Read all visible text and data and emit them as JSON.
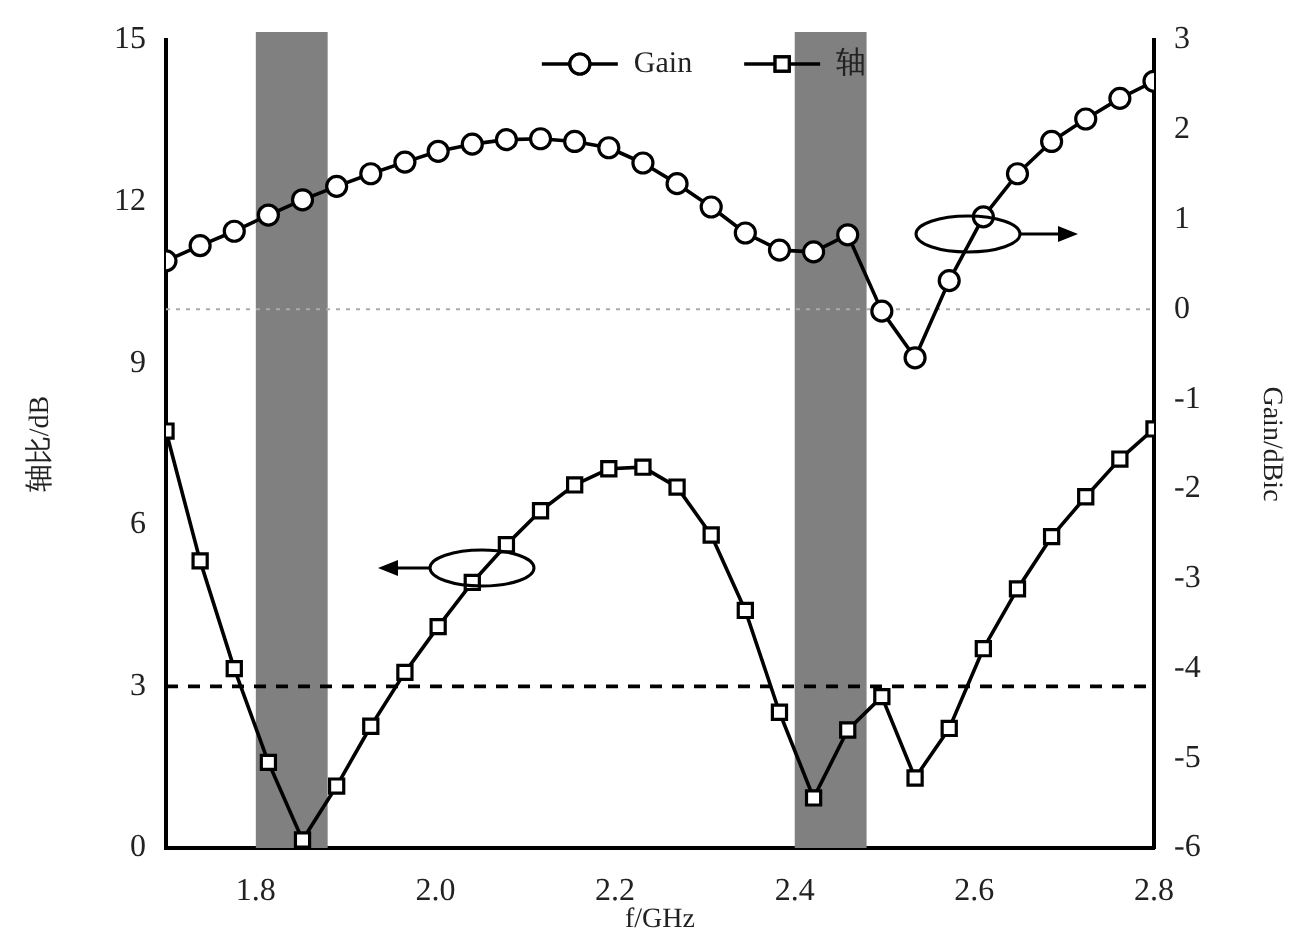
{
  "chart_data": {
    "type": "line",
    "xlabel": "f/GHz",
    "ylabel": "轴比/dB",
    "y2label": "Gain/dBic",
    "x": [
      1.7,
      1.738,
      1.776,
      1.814,
      1.852,
      1.89,
      1.928,
      1.966,
      2.003,
      2.041,
      2.079,
      2.117,
      2.155,
      2.193,
      2.231,
      2.269,
      2.307,
      2.345,
      2.383,
      2.421,
      2.459,
      2.497,
      2.534,
      2.572,
      2.61,
      2.648,
      2.686,
      2.724,
      2.762,
      2.8
    ],
    "series": [
      {
        "name": "Gain",
        "color": "#000000",
        "axis": "y2",
        "marker": "circle",
        "values": [
          0.54,
          0.71,
          0.87,
          1.05,
          1.22,
          1.37,
          1.51,
          1.64,
          1.76,
          1.84,
          1.89,
          1.9,
          1.87,
          1.8,
          1.63,
          1.4,
          1.14,
          0.85,
          0.66,
          0.64,
          0.83,
          -0.02,
          -0.54,
          0.32,
          1.03,
          1.51,
          1.87,
          2.12,
          2.35,
          2.54
        ]
      },
      {
        "name": "轴",
        "color": "#000000",
        "axis": "y",
        "marker": "square",
        "values": [
          7.74,
          5.33,
          3.33,
          1.59,
          0.15,
          1.15,
          2.26,
          3.26,
          4.11,
          4.93,
          5.63,
          6.26,
          6.74,
          7.04,
          7.07,
          6.7,
          5.81,
          4.41,
          2.52,
          0.93,
          2.19,
          2.81,
          1.3,
          2.22,
          3.7,
          4.81,
          5.78,
          6.52,
          7.22,
          7.78
        ]
      }
    ],
    "xlim": [
      1.7,
      2.8
    ],
    "xticks": [
      {
        "value": 1.7,
        "label": null
      },
      1.8,
      {
        "value": 2.0,
        "label": "2.0"
      },
      2.2,
      2.4,
      2.6,
      2.8
    ],
    "ylim": [
      0,
      15
    ],
    "yticks": [
      0,
      3,
      6,
      9,
      12,
      15
    ],
    "y2lim": [
      -6,
      3
    ],
    "y2ticks": [
      -6,
      -5,
      -4,
      -3,
      -2,
      -1,
      0,
      1,
      2,
      3
    ],
    "ref_lines": [
      {
        "axis": "y",
        "value": 3,
        "label": null,
        "color": "#000000",
        "line_style": "dashed"
      },
      {
        "axis": "y2",
        "value": 0,
        "label": null,
        "color": "#aaaaaa",
        "line_style": "dotted"
      }
    ],
    "bands": [
      {
        "axis": "x",
        "from": 1.8,
        "to": 1.88,
        "label": null,
        "color": "#808080"
      },
      {
        "axis": "x",
        "from": 2.4,
        "to": 2.48,
        "label": null,
        "color": "#808080"
      }
    ],
    "legend": "top",
    "grid": false
  }
}
